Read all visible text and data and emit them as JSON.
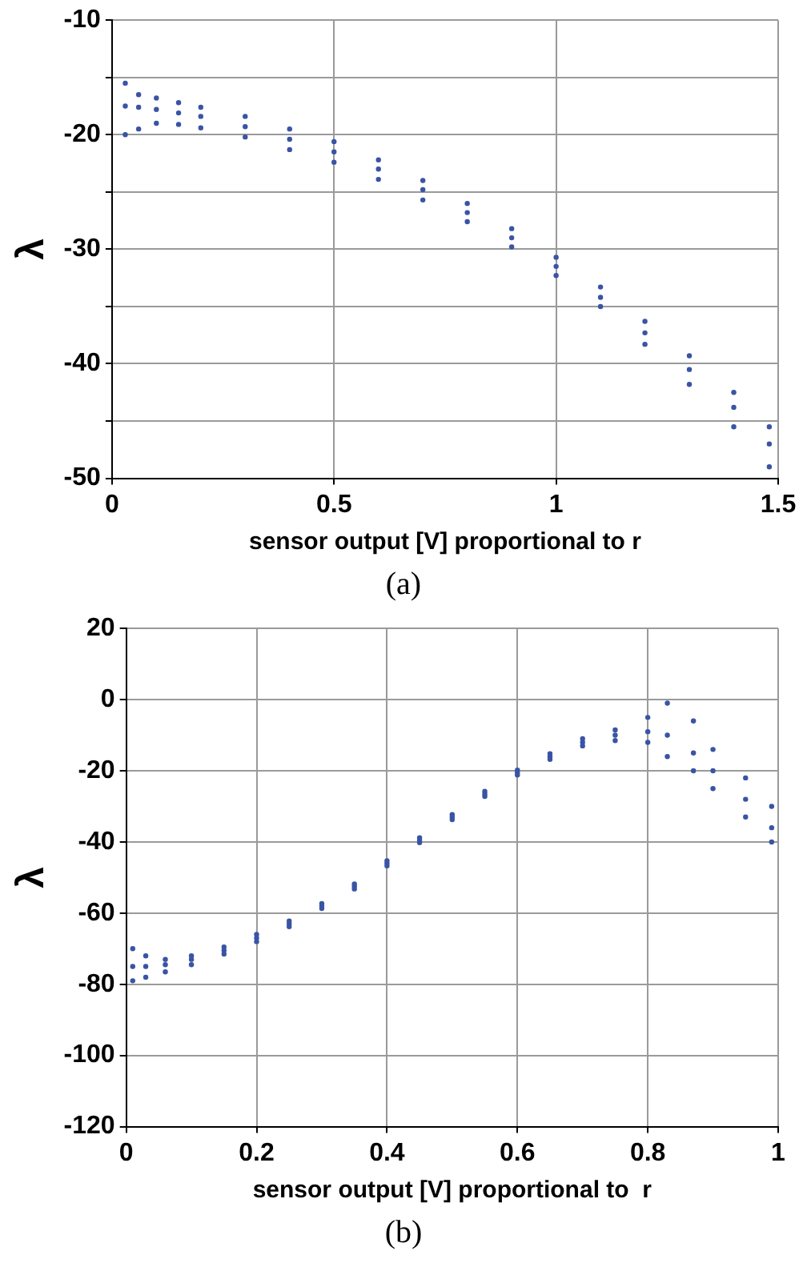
{
  "chart_data": [
    {
      "type": "scatter",
      "xlabel": "sensor output [V] proportional to r",
      "ylabel": "λ",
      "annotations": [
        "(a)"
      ],
      "xlim": [
        0,
        1.5
      ],
      "xticks": [
        0,
        0.5,
        1,
        1.5
      ],
      "ylim": [
        -50,
        -10
      ],
      "yticks": [
        -50,
        {
          "value": -45,
          "label": null
        },
        -40,
        {
          "value": -35,
          "label": null
        },
        -30,
        {
          "value": -25,
          "label": null
        },
        -20,
        {
          "value": -15,
          "label": null
        },
        -10
      ],
      "grid": true,
      "marker": "circle",
      "series": [
        {
          "color": "#3a54a4",
          "x": [
            0.03,
            0.03,
            0.03,
            0.06,
            0.06,
            0.06,
            0.1,
            0.1,
            0.1,
            0.15,
            0.15,
            0.15,
            0.2,
            0.2,
            0.2,
            0.3,
            0.3,
            0.3,
            0.4,
            0.4,
            0.4,
            0.5,
            0.5,
            0.5,
            0.6,
            0.6,
            0.6,
            0.7,
            0.7,
            0.7,
            0.8,
            0.8,
            0.8,
            0.9,
            0.9,
            0.9,
            1.0,
            1.0,
            1.0,
            1.1,
            1.1,
            1.1,
            1.2,
            1.2,
            1.2,
            1.3,
            1.3,
            1.3,
            1.4,
            1.4,
            1.4,
            1.48,
            1.48,
            1.48
          ],
          "values": [
            -15.5,
            -17.5,
            -20,
            -16.5,
            -17.6,
            -19.5,
            -16.8,
            -17.8,
            -19,
            -17.2,
            -18.1,
            -19.1,
            -17.6,
            -18.4,
            -19.4,
            -18.4,
            -19.3,
            -20.2,
            -19.5,
            -20.4,
            -21.3,
            -20.6,
            -21.5,
            -22.4,
            -22.2,
            -23,
            -23.9,
            -24,
            -24.8,
            -25.7,
            -26,
            -26.8,
            -27.6,
            -28.2,
            -29,
            -29.8,
            -30.7,
            -31.5,
            -32.3,
            -33.3,
            -34.2,
            -35,
            -36.3,
            -37.3,
            -38.3,
            -39.3,
            -40.5,
            -41.8,
            -42.5,
            -43.8,
            -45.5,
            -45.5,
            -47,
            -49
          ]
        }
      ]
    },
    {
      "type": "scatter",
      "xlabel": "sensor output [V] proportional to  r",
      "ylabel": "λ",
      "annotations": [
        "(b)"
      ],
      "xlim": [
        0,
        1
      ],
      "xticks": [
        0,
        0.2,
        0.4,
        0.6,
        0.8,
        1
      ],
      "ylim": [
        -120,
        20
      ],
      "yticks": [
        -120,
        -100,
        -80,
        -60,
        -40,
        -20,
        0,
        20
      ],
      "grid": true,
      "marker": "circle",
      "series": [
        {
          "color": "#3a54a4",
          "x": [
            0.01,
            0.01,
            0.01,
            0.03,
            0.03,
            0.03,
            0.06,
            0.06,
            0.06,
            0.1,
            0.1,
            0.1,
            0.15,
            0.15,
            0.15,
            0.2,
            0.2,
            0.2,
            0.25,
            0.25,
            0.25,
            0.3,
            0.3,
            0.3,
            0.35,
            0.35,
            0.35,
            0.4,
            0.4,
            0.4,
            0.45,
            0.45,
            0.45,
            0.5,
            0.5,
            0.5,
            0.55,
            0.55,
            0.55,
            0.6,
            0.6,
            0.6,
            0.65,
            0.65,
            0.65,
            0.7,
            0.7,
            0.7,
            0.75,
            0.75,
            0.75,
            0.8,
            0.8,
            0.8,
            0.83,
            0.83,
            0.83,
            0.87,
            0.87,
            0.87,
            0.9,
            0.9,
            0.9,
            0.95,
            0.95,
            0.95,
            0.99,
            0.99,
            0.99
          ],
          "values": [
            -70,
            -75,
            -79,
            -72,
            -75,
            -78,
            -73,
            -74.5,
            -76.5,
            -72,
            -73,
            -74.5,
            -69.5,
            -70.5,
            -71.5,
            -66,
            -67,
            -68,
            -62.2,
            -63,
            -63.8,
            -57.3,
            -58,
            -58.7,
            -51.8,
            -52.5,
            -53.2,
            -45.3,
            -46,
            -46.7,
            -38.8,
            -39.5,
            -40.2,
            -32.3,
            -33,
            -33.7,
            -25.8,
            -26.5,
            -27.2,
            -19.8,
            -20.5,
            -21.2,
            -15.2,
            -16,
            -16.8,
            -11,
            -12,
            -13,
            -8.5,
            -10,
            -11.5,
            -5,
            -9,
            -12,
            -1,
            -10,
            -16,
            -6,
            -15,
            -20,
            -14,
            -20,
            -25,
            -22,
            -28,
            -33,
            -30,
            -36,
            -40
          ]
        }
      ]
    }
  ]
}
